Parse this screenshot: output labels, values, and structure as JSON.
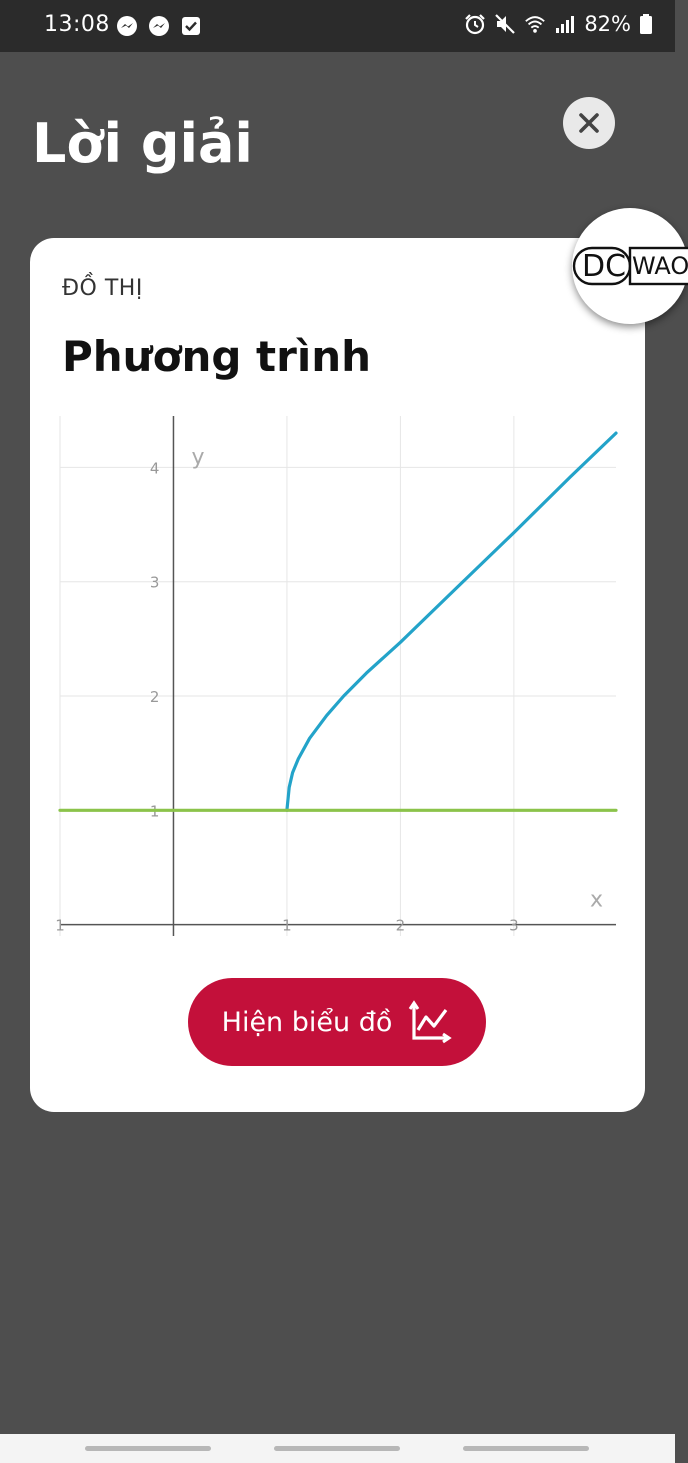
{
  "status_bar": {
    "time": "13:08",
    "battery": "82%",
    "icons_left": [
      "messenger-icon",
      "messenger-icon",
      "checkbox-icon"
    ],
    "icons_right": [
      "alarm-icon",
      "mute-icon",
      "wifi-icon",
      "signal-icon",
      "battery-icon"
    ]
  },
  "overlay": {
    "title": "Lời giải",
    "close_icon": "close-icon"
  },
  "watermark": {
    "text_left": "DC",
    "text_right": "WAO"
  },
  "card": {
    "label": "ĐỒ THỊ",
    "heading": "Phương trình",
    "button_label": "Hiện biểu đồ",
    "button_icon": "chart-icon"
  },
  "chart_data": {
    "type": "line",
    "xlabel": "x",
    "ylabel": "y",
    "xlim": [
      -1,
      3.9
    ],
    "ylim": [
      -0.1,
      4.45
    ],
    "x_ticks": [
      -1,
      1,
      2,
      3
    ],
    "y_ticks": [
      1,
      2,
      3,
      4
    ],
    "grid": true,
    "series": [
      {
        "color": "#23a3c9",
        "points": [
          [
            1,
            1
          ],
          [
            1.02,
            1.2
          ],
          [
            1.05,
            1.33
          ],
          [
            1.1,
            1.45
          ],
          [
            1.2,
            1.63
          ],
          [
            1.35,
            1.83
          ],
          [
            1.5,
            2.0
          ],
          [
            1.7,
            2.2
          ],
          [
            2.0,
            2.47
          ],
          [
            2.5,
            2.95
          ],
          [
            3.0,
            3.43
          ],
          [
            3.5,
            3.92
          ],
          [
            3.9,
            4.3
          ]
        ]
      },
      {
        "color": "#8bc34a",
        "points": [
          [
            -1,
            1
          ],
          [
            3.9,
            1
          ]
        ]
      }
    ]
  },
  "colors": {
    "button": "#c3103a",
    "background": "#4e4e4e",
    "status_bar": "#2b2b2b"
  }
}
